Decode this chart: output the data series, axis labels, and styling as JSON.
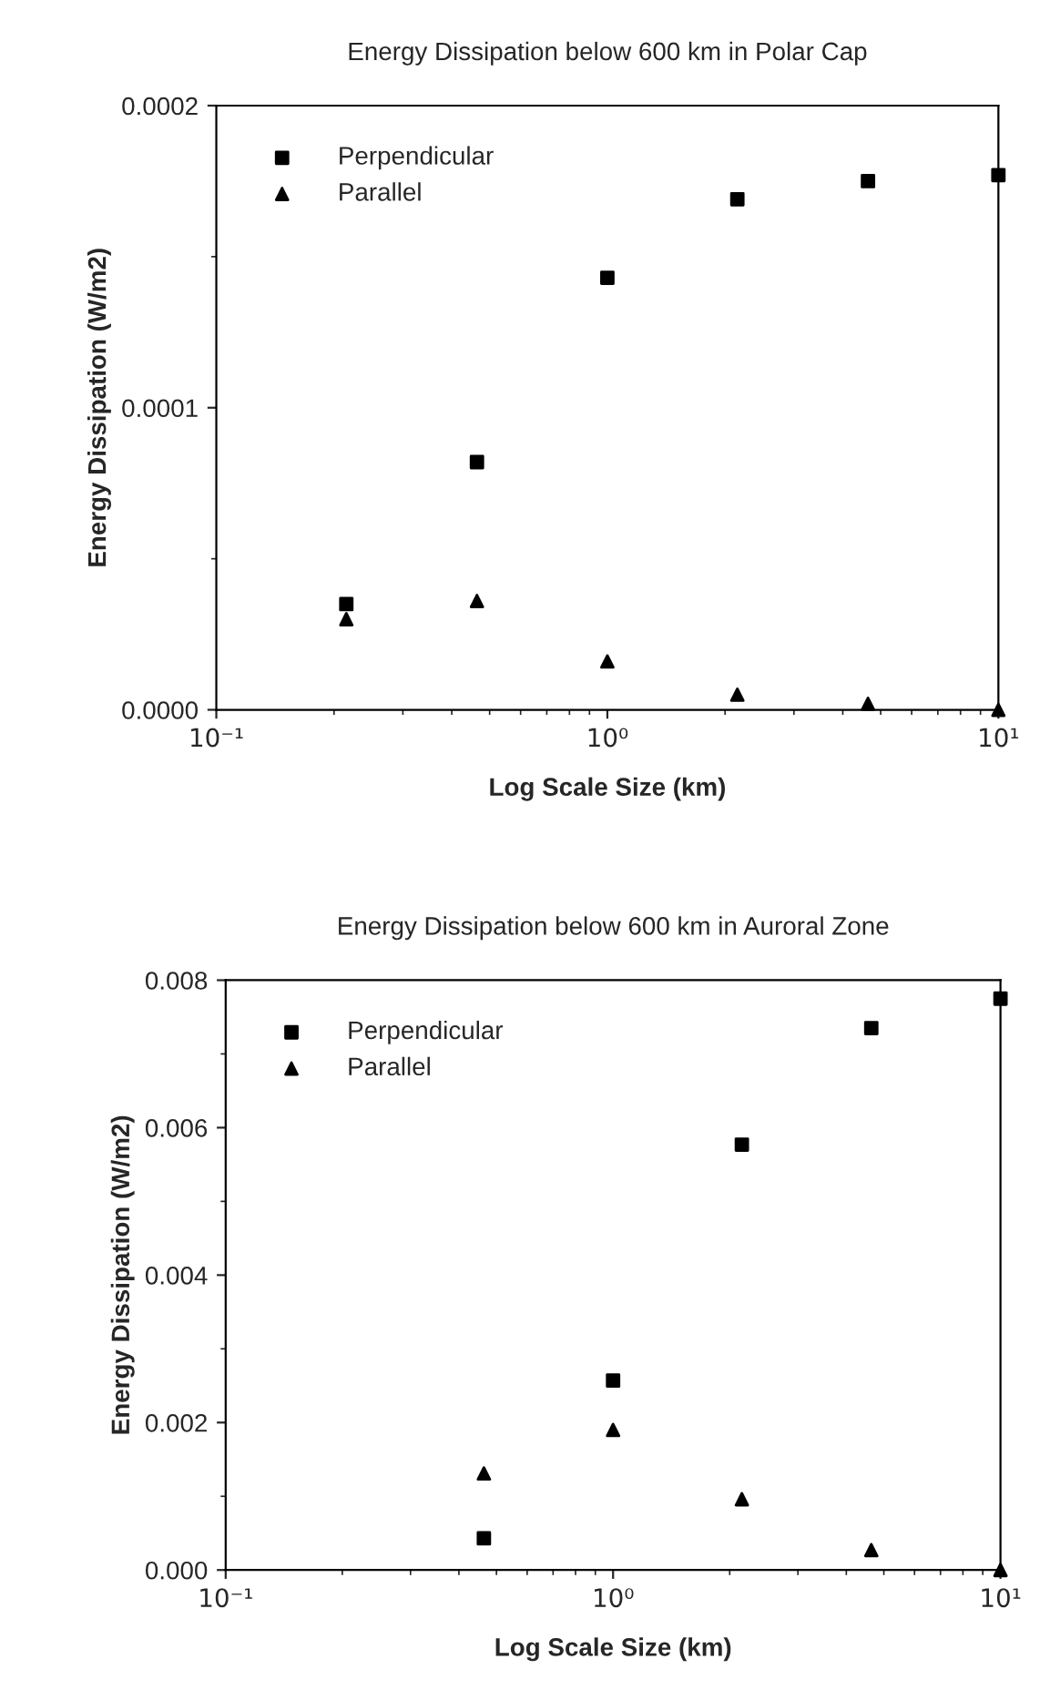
{
  "chart_data": [
    {
      "type": "scatter",
      "title": "Energy Dissipation below 600 km in Polar Cap",
      "xlabel": "Log Scale Size (km)",
      "ylabel": "Energy Dissipation (W/m2)",
      "log": "x",
      "xlim": [
        0.1,
        10
      ],
      "xticks": [
        {
          "value": 0.1,
          "label": "10⁻¹"
        },
        {
          "value": 1,
          "label": "10⁰"
        },
        {
          "value": 10,
          "label": "10¹"
        }
      ],
      "ylim": [
        0,
        0.0002
      ],
      "yticks": [
        {
          "value": 0,
          "label": "0.0000"
        },
        {
          "value": 0.0001,
          "label": "0.0001"
        },
        {
          "value": 0.0002,
          "label": "0.0002"
        }
      ],
      "grid": false,
      "legend": "top left",
      "x": [
        0.215,
        0.464,
        1,
        2.15,
        4.64,
        10
      ],
      "series": [
        {
          "name": "Perpendicular",
          "color": "#000000",
          "marker": "square",
          "values": [
            3.5e-05,
            8.2e-05,
            0.000143,
            0.000169,
            0.000175,
            0.000177
          ]
        },
        {
          "name": "Parallel",
          "color": "#000000",
          "marker": "triangle",
          "values": [
            3e-05,
            3.6e-05,
            1.6e-05,
            5e-06,
            2e-06,
            0.0
          ]
        }
      ]
    },
    {
      "type": "scatter",
      "title": "Energy Dissipation below 600 km in Auroral Zone",
      "xlabel": "Log Scale Size (km)",
      "ylabel": "Energy Dissipation (W/m2)",
      "log": "x",
      "xlim": [
        0.1,
        10
      ],
      "xticks": [
        {
          "value": 0.1,
          "label": "10⁻¹"
        },
        {
          "value": 1,
          "label": "10⁰"
        },
        {
          "value": 10,
          "label": "10¹"
        }
      ],
      "ylim": [
        0,
        0.008
      ],
      "yticks": [
        {
          "value": 0,
          "label": "0.000"
        },
        {
          "value": 0.002,
          "label": "0.002"
        },
        {
          "value": 0.004,
          "label": "0.004"
        },
        {
          "value": 0.006,
          "label": "0.006"
        },
        {
          "value": 0.008,
          "label": "0.008"
        }
      ],
      "grid": false,
      "legend": "top left",
      "x": [
        0.464,
        1,
        2.15,
        4.64,
        10
      ],
      "series": [
        {
          "name": "Perpendicular",
          "color": "#000000",
          "marker": "square",
          "values": [
            0.00043,
            0.00257,
            0.00577,
            0.00735,
            0.00775
          ]
        },
        {
          "name": "Parallel",
          "color": "#000000",
          "marker": "triangle",
          "values": [
            0.00131,
            0.0019,
            0.00096,
            0.00027,
            0.0
          ]
        }
      ]
    }
  ]
}
